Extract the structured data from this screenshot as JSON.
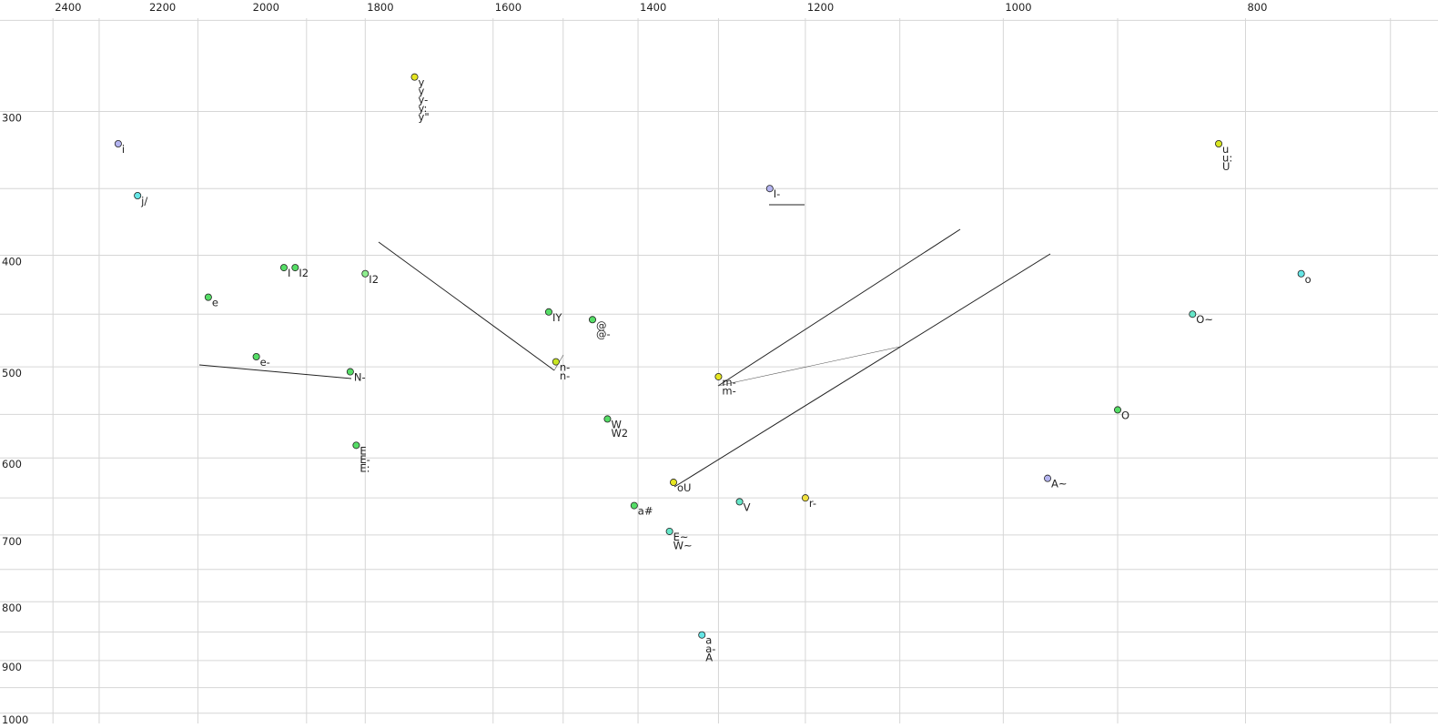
{
  "chart_data": {
    "type": "scatter",
    "log_x": true,
    "log_y": true,
    "xlim": [
      2520,
      670
    ],
    "ylim": [
      240,
      1030
    ],
    "xticks": [
      2400,
      2200,
      2000,
      1800,
      1600,
      1400,
      1200,
      1000,
      800
    ],
    "yticks": [
      300,
      400,
      500,
      600,
      700,
      800,
      900,
      1000
    ],
    "xgrid": [
      2400,
      2300,
      2100,
      1900,
      1800,
      1600,
      1500,
      1400,
      1300,
      1200,
      1100,
      1000,
      900,
      800,
      700
    ],
    "ygrid": [
      250,
      300,
      350,
      400,
      450,
      500,
      550,
      600,
      650,
      700,
      750,
      800,
      850,
      900,
      950,
      1000
    ],
    "points": [
      {
        "f2": 2260,
        "f1": 320,
        "color": "#b4b4f0",
        "labels": [
          "i"
        ]
      },
      {
        "f2": 2220,
        "f1": 355,
        "color": "#66e6e6",
        "labels": [
          "j/"
        ]
      },
      {
        "f2": 2080,
        "f1": 435,
        "color": "#55dd66",
        "labels": [
          "e"
        ]
      },
      {
        "f2": 1940,
        "f1": 410,
        "color": "#55dd66",
        "labels": [
          "I"
        ]
      },
      {
        "f2": 1920,
        "f1": 410,
        "color": "#55dd66",
        "labels": [
          "I2"
        ]
      },
      {
        "f2": 1800,
        "f1": 415,
        "color": "#8eee8e",
        "labels": [
          "I2"
        ],
        "label_colors": [
          "#888888"
        ]
      },
      {
        "f2": 1720,
        "f1": 280,
        "color": "#e6e622",
        "labels": [
          "y",
          "y",
          "y-",
          "y:",
          "y\""
        ],
        "label_colors": [
          "#999999",
          "#222222",
          "#222222",
          "#222222",
          "#222222"
        ]
      },
      {
        "f2": 1990,
        "f1": 490,
        "color": "#55dd66",
        "labels": [
          "e-"
        ]
      },
      {
        "f2": 1825,
        "f1": 505,
        "color": "#55dd66",
        "labels": [
          "N-"
        ]
      },
      {
        "f2": 1815,
        "f1": 585,
        "color": "#55dd66",
        "labels": [
          "E",
          "E-",
          "E:"
        ]
      },
      {
        "f2": 1520,
        "f1": 448,
        "color": "#55dd66",
        "labels": [
          "IY"
        ]
      },
      {
        "f2": 1460,
        "f1": 455,
        "color": "#55dd66",
        "labels": [
          "@",
          "@-"
        ]
      },
      {
        "f2": 1510,
        "f1": 495,
        "color": "#c8e622",
        "labels": [
          "n-",
          "n-"
        ],
        "label_colors": [
          "#8888cc",
          "#222222"
        ]
      },
      {
        "f2": 1440,
        "f1": 555,
        "color": "#55dd66",
        "labels": [
          "W",
          "W2"
        ]
      },
      {
        "f2": 1405,
        "f1": 660,
        "color": "#55dd66",
        "labels": [
          "a#"
        ]
      },
      {
        "f2": 1355,
        "f1": 630,
        "color": "#e6e622",
        "labels": [
          "oU"
        ]
      },
      {
        "f2": 1360,
        "f1": 695,
        "color": "#66e6c8",
        "labels": [
          "E~",
          "W~"
        ]
      },
      {
        "f2": 1320,
        "f1": 855,
        "color": "#66e6e6",
        "labels": [
          "a",
          "a-",
          "A"
        ]
      },
      {
        "f2": 1300,
        "f1": 510,
        "color": "#e6e622",
        "labels": [
          "m-",
          "m-"
        ],
        "label_colors": [
          "#999999",
          "#222222"
        ]
      },
      {
        "f2": 1275,
        "f1": 655,
        "color": "#66e6c8",
        "labels": [
          "V"
        ]
      },
      {
        "f2": 1240,
        "f1": 350,
        "color": "#b4b4f0",
        "labels": [
          "I-"
        ]
      },
      {
        "f2": 1200,
        "f1": 650,
        "color": "#f0e040",
        "labels": [
          "r-"
        ]
      },
      {
        "f2": 960,
        "f1": 625,
        "color": "#b4b4f0",
        "labels": [
          "A~"
        ]
      },
      {
        "f2": 900,
        "f1": 545,
        "color": "#55dd66",
        "labels": [
          "O"
        ]
      },
      {
        "f2": 840,
        "f1": 450,
        "color": "#66e6c8",
        "labels": [
          "O~"
        ]
      },
      {
        "f2": 820,
        "f1": 320,
        "color": "#d8e622",
        "labels": [
          "u",
          "u:",
          "U"
        ]
      },
      {
        "f2": 760,
        "f1": 415,
        "color": "#66e6e6",
        "labels": [
          "o"
        ]
      }
    ]
  }
}
